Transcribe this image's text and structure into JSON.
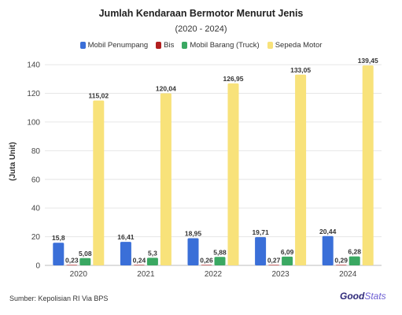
{
  "chart_data": {
    "type": "bar",
    "title": "Jumlah Kendaraan Bermotor Menurut Jenis",
    "subtitle": "(2020 - 2024)",
    "ylabel": "(Juta Unit)",
    "xlabel": "",
    "ylim": [
      0,
      145
    ],
    "yticks": [
      0,
      20,
      40,
      60,
      80,
      100,
      120,
      140
    ],
    "grid": true,
    "legend_position": "top",
    "categories": [
      "2020",
      "2021",
      "2022",
      "2023",
      "2024"
    ],
    "series": [
      {
        "name": "Mobil Penumpang",
        "color": "#3a6fd8",
        "values": [
          15.8,
          16.41,
          18.95,
          19.71,
          20.44
        ],
        "labels": [
          "15,8",
          "16,41",
          "18,95",
          "19,71",
          "20,44"
        ]
      },
      {
        "name": "Bis",
        "color": "#b21f1f",
        "values": [
          0.23,
          0.24,
          0.26,
          0.27,
          0.29
        ],
        "labels": [
          "0,23",
          "0,24",
          "0,26",
          "0,27",
          "0,29"
        ]
      },
      {
        "name": "Mobil Barang (Truck)",
        "color": "#3aa862",
        "values": [
          5.08,
          5.3,
          5.88,
          6.09,
          6.28
        ],
        "labels": [
          "5,08",
          "5,3",
          "5,88",
          "6,09",
          "6,28"
        ]
      },
      {
        "name": "Sepeda Motor",
        "color": "#f8e27a",
        "values": [
          115.02,
          120.04,
          126.95,
          133.05,
          139.45
        ],
        "labels": [
          "115,02",
          "120,04",
          "126,95",
          "133,05",
          "139,45"
        ]
      }
    ]
  },
  "source": "Sumber: Kepolisian RI Via BPS",
  "brand": {
    "part1": "Good",
    "part2": "Stats"
  }
}
